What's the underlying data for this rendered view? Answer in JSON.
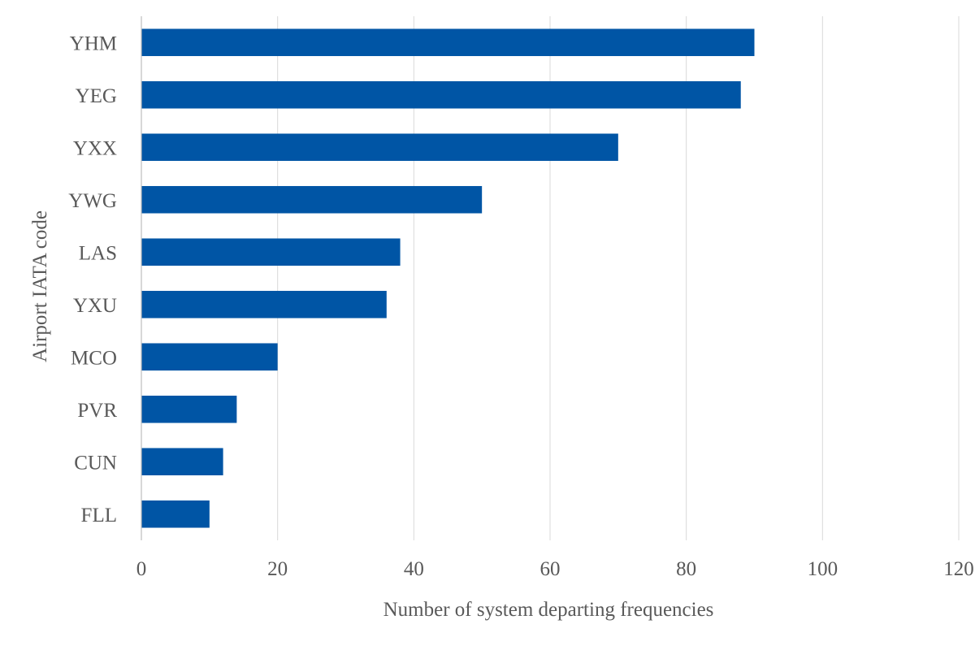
{
  "chart_data": {
    "type": "bar",
    "orientation": "horizontal",
    "categories": [
      "YHM",
      "YEG",
      "YXX",
      "YWG",
      "LAS",
      "YXU",
      "MCO",
      "PVR",
      "CUN",
      "FLL"
    ],
    "values": [
      90,
      88,
      70,
      50,
      38,
      36,
      20,
      14,
      12,
      10
    ],
    "title": "",
    "xlabel": "Number of system departing frequencies",
    "ylabel": "Airport IATA code",
    "xlim": [
      0,
      120
    ],
    "xticks": [
      "0",
      "20",
      "40",
      "60",
      "80",
      "100",
      "120"
    ],
    "grid": true,
    "legend": "none",
    "bar_color": "#0055a5"
  }
}
